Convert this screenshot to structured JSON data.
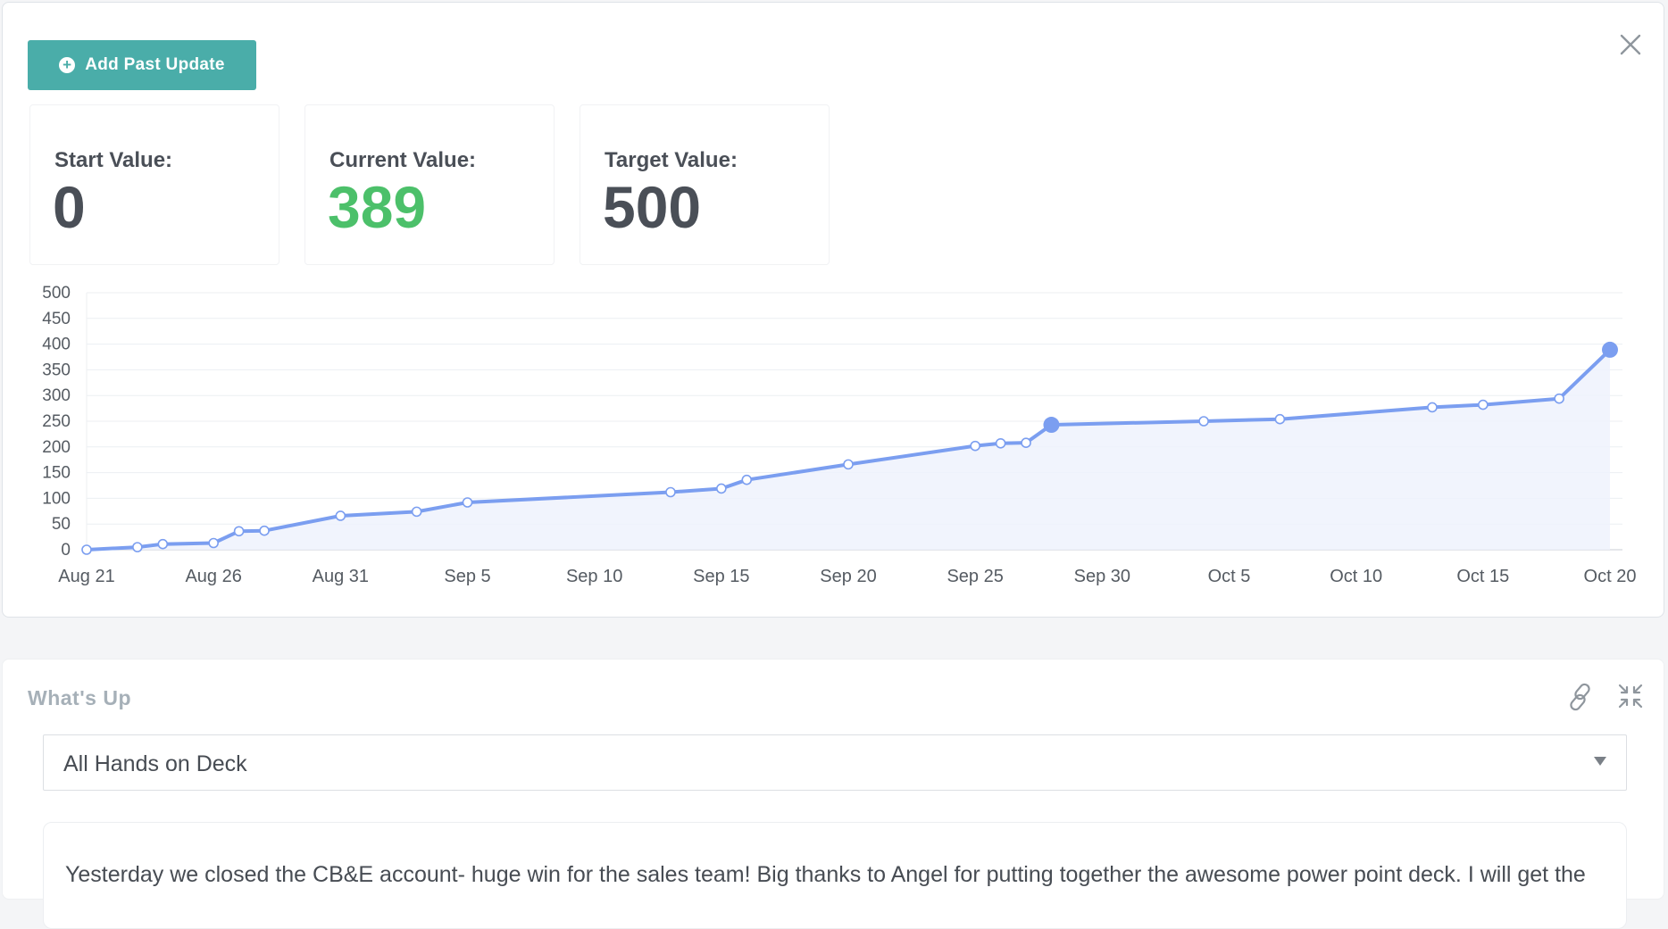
{
  "header": {
    "add_button_label": "Add Past Update",
    "close_icon": "close-icon",
    "add_icon": "plus-circle-icon"
  },
  "stats": {
    "start_label": "Start Value:",
    "start_value": "0",
    "current_label": "Current Value:",
    "current_value": "389",
    "target_label": "Target Value:",
    "target_value": "500"
  },
  "colors": {
    "accent": "#4aada9",
    "current": "#4cc06a",
    "line": "#7b9ef0",
    "fill": "#eef2fd"
  },
  "chart_data": {
    "type": "area",
    "x_tick_labels": [
      "Aug 21",
      "Aug 26",
      "Aug 31",
      "Sep 5",
      "Sep 10",
      "Sep 15",
      "Sep 20",
      "Sep 25",
      "Sep 30",
      "Oct 5",
      "Oct 10",
      "Oct 15",
      "Oct 20"
    ],
    "y_tick_labels": [
      "0",
      "50",
      "100",
      "150",
      "200",
      "250",
      "300",
      "350",
      "400",
      "450",
      "500"
    ],
    "xlim": [
      "Aug 21",
      "Oct 21"
    ],
    "ylim": [
      0,
      500
    ],
    "grid": true,
    "series": [
      {
        "points": [
          {
            "x": "Aug 21",
            "y": 0
          },
          {
            "x": "Aug 23",
            "y": 5
          },
          {
            "x": "Aug 24",
            "y": 11
          },
          {
            "x": "Aug 26",
            "y": 13
          },
          {
            "x": "Aug 27",
            "y": 36
          },
          {
            "x": "Aug 28",
            "y": 37
          },
          {
            "x": "Aug 31",
            "y": 66
          },
          {
            "x": "Sep 3",
            "y": 74
          },
          {
            "x": "Sep 5",
            "y": 92
          },
          {
            "x": "Sep 13",
            "y": 112
          },
          {
            "x": "Sep 15",
            "y": 119
          },
          {
            "x": "Sep 16",
            "y": 136
          },
          {
            "x": "Sep 20",
            "y": 166
          },
          {
            "x": "Sep 25",
            "y": 202
          },
          {
            "x": "Sep 26",
            "y": 207
          },
          {
            "x": "Sep 27",
            "y": 208
          },
          {
            "x": "Sep 28",
            "y": 243,
            "highlight": true
          },
          {
            "x": "Oct 4",
            "y": 250
          },
          {
            "x": "Oct 7",
            "y": 254
          },
          {
            "x": "Oct 13",
            "y": 277
          },
          {
            "x": "Oct 15",
            "y": 282
          },
          {
            "x": "Oct 18",
            "y": 294
          },
          {
            "x": "Oct 20",
            "y": 389,
            "highlight": true
          }
        ]
      }
    ]
  },
  "whats_up": {
    "title": "What's Up",
    "link_icon": "link-icon",
    "collapse_icon": "collapse-icon",
    "select_value": "All Hands on Deck",
    "text": "Yesterday we closed the CB&E account- huge win for the sales team! Big thanks to Angel for putting together the awesome power point deck. I will get the"
  }
}
